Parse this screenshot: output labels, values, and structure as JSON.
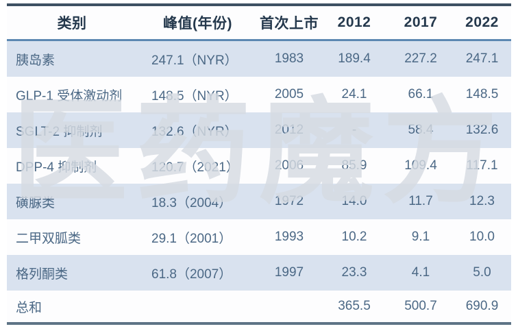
{
  "chart_data": {
    "type": "table",
    "columns": [
      "类别",
      "峰值(年份)",
      "首次上市",
      "2012",
      "2017",
      "2022"
    ],
    "rows": [
      [
        "胰岛素",
        "247.1（NYR）",
        "1983",
        "189.4",
        "227.2",
        "247.1"
      ],
      [
        "GLP-1 受体激动剂",
        "148.5（NYR）",
        "2005",
        "24.1",
        "66.1",
        "148.5"
      ],
      [
        "SGLT-2 抑制剂",
        "132.6（NYR）",
        "2012",
        "-",
        "58.4",
        "132.6"
      ],
      [
        "DPP-4 抑制剂",
        "120.7（2021）",
        "2006",
        "85.9",
        "109.4",
        "117.1"
      ],
      [
        "磺脲类",
        "18.3（2004）",
        "1972",
        "14.0",
        "11.7",
        "12.3"
      ],
      [
        "二甲双胍类",
        "29.1（2001）",
        "1993",
        "10.2",
        "9.1",
        "10.0"
      ],
      [
        "格列酮类",
        "61.8（2007）",
        "1997",
        "23.3",
        "4.1",
        "5.0"
      ],
      [
        "总和",
        "",
        "",
        "365.5",
        "500.7",
        "690.9"
      ]
    ],
    "layout_hints": {
      "striped_rows": "odd rows light blue",
      "first_two_columns_align": "left",
      "other_columns_align": "center"
    }
  },
  "watermark": {
    "text": "医药魔方"
  },
  "colors": {
    "top_border": "#3d5063",
    "header_underline": "#5c88b2",
    "bottom_border": "#5e7486",
    "stripe_row_bg": "#d9e2ef",
    "header_text": "#24384c",
    "body_text": "#4b6885",
    "watermark": "#d5dae2"
  }
}
